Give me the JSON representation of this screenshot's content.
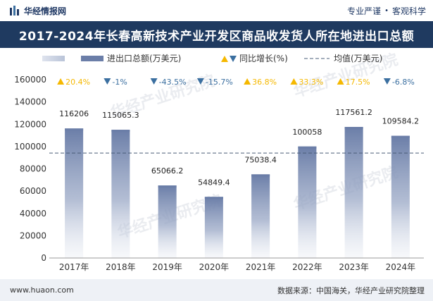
{
  "header": {
    "brand": "华经情报网",
    "tag1": "专业严谨",
    "separator": "•",
    "tag2": "客观科学"
  },
  "footer": {
    "website": "www.huaon.com",
    "source": "数据来源：中国海关，华经产业研究院整理"
  },
  "watermark_text": "华经产业研究院",
  "colors": {
    "title_bg": "#1f3a60",
    "bar": "#6b7ea8",
    "avg_line": "#4a5d78",
    "up": "#f5b800",
    "down": "#3b6fa0"
  },
  "chart_data": {
    "type": "bar",
    "title": "2017-2024年长春高新技术产业开发区商品收发货人所在地进出口总额",
    "legend": {
      "bar_label": "进出口总额(万美元)",
      "growth_label": "同比增长(%)",
      "avg_label": "均值(万美元)"
    },
    "categories": [
      "2017年",
      "2018年",
      "2019年",
      "2020年",
      "2021年",
      "2022年",
      "2023年",
      "2024年"
    ],
    "series": [
      {
        "name": "进出口总额(万美元)",
        "values": [
          116206,
          115065.3,
          65066.2,
          54849.4,
          75038.4,
          100058,
          117561.2,
          109584.2
        ],
        "labels": [
          "116206",
          "115065.3",
          "65066.2",
          "54849.4",
          "75038.4",
          "100058",
          "117561.2",
          "109584.2"
        ]
      }
    ],
    "growth": [
      {
        "value": 20.4,
        "dir": "up",
        "label": "20.4%"
      },
      {
        "value": -1,
        "dir": "down",
        "label": "-1%"
      },
      {
        "value": -43.5,
        "dir": "down",
        "label": "-43.5%"
      },
      {
        "value": -15.7,
        "dir": "down",
        "label": "-15.7%"
      },
      {
        "value": 36.8,
        "dir": "up",
        "label": "36.8%"
      },
      {
        "value": 33.3,
        "dir": "up",
        "label": "33.3%"
      },
      {
        "value": 17.5,
        "dir": "up",
        "label": "17.5%"
      },
      {
        "value": -6.8,
        "dir": "down",
        "label": "-6.8%"
      }
    ],
    "average": 94179,
    "ylim": [
      0,
      160000
    ],
    "yticks": [
      0,
      20000,
      40000,
      60000,
      80000,
      100000,
      120000,
      140000,
      160000
    ],
    "ytick_labels": [
      "0",
      "20000",
      "40000",
      "60000",
      "80000",
      "100000",
      "120000",
      "140000",
      "160000"
    ]
  }
}
